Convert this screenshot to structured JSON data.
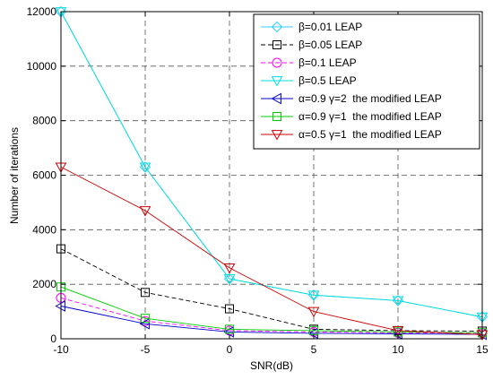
{
  "chart_data": {
    "type": "line",
    "title": "",
    "xlabel": "SNR(dB)",
    "ylabel": "Number of iterations",
    "xlim": [
      -10,
      15
    ],
    "ylim": [
      0,
      12000
    ],
    "xticks": [
      -10,
      -5,
      0,
      5,
      10,
      15
    ],
    "yticks": [
      0,
      2000,
      4000,
      6000,
      8000,
      10000,
      12000
    ],
    "xtick_labels": [
      "-10",
      "-5",
      "0",
      "5",
      "10",
      "15"
    ],
    "ytick_labels": [
      "0",
      "2000",
      "4000",
      "6000",
      "8000",
      "10000",
      "12000"
    ],
    "grid": true,
    "legend_position": "top-right",
    "x": [
      -10,
      -5,
      0,
      5,
      10,
      15
    ],
    "series": [
      {
        "name": "β=0.01 LEAP",
        "color": "#33ccff",
        "marker": "diamond",
        "dash": "solid",
        "values": [
          12000,
          6300,
          2200,
          1600,
          1400,
          800
        ]
      },
      {
        "name": "β=0.05 LEAP",
        "color": "#000000",
        "marker": "square",
        "dash": "dashed",
        "values": [
          3300,
          1700,
          1100,
          350,
          300,
          280
        ]
      },
      {
        "name": "β=0.1 LEAP",
        "color": "#ff00ff",
        "marker": "circle",
        "dash": "dashed",
        "values": [
          1500,
          650,
          300,
          250,
          220,
          200
        ]
      },
      {
        "name": "β=0.5 LEAP",
        "color": "#00dddd",
        "marker": "triangle-down",
        "dash": "solid",
        "values": [
          12000,
          6300,
          2200,
          1600,
          1400,
          800
        ]
      },
      {
        "name": "α=0.9 γ=2  the modified LEAP",
        "color": "#0000cc",
        "marker": "triangle-left",
        "dash": "solid",
        "values": [
          1200,
          550,
          250,
          200,
          180,
          160
        ]
      },
      {
        "name": "α=0.9 γ=1  the modified LEAP",
        "color": "#00cc00",
        "marker": "square",
        "dash": "solid",
        "values": [
          1900,
          750,
          350,
          300,
          250,
          220
        ]
      },
      {
        "name": "α=0.5 γ=1  the modified LEAP",
        "color": "#cc0000",
        "marker": "triangle-down",
        "dash": "solid",
        "values": [
          6300,
          4700,
          2600,
          1000,
          300,
          150
        ]
      }
    ]
  }
}
